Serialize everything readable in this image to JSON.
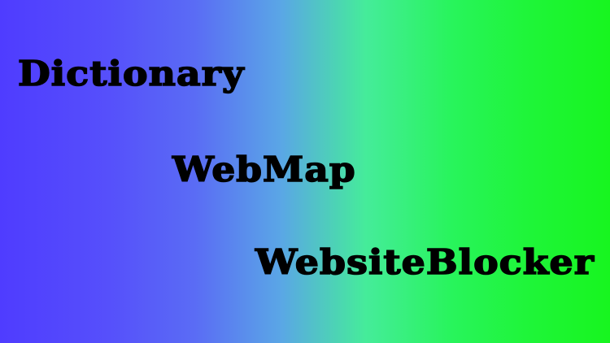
{
  "colors": {
    "gradient_left": "#4f3cff",
    "gradient_mid": "#5aa6e6",
    "gradient_right": "#17f51f",
    "text": "#000000"
  },
  "labels": [
    "Dictionary",
    "WebMap",
    "WebsiteBlocker"
  ]
}
